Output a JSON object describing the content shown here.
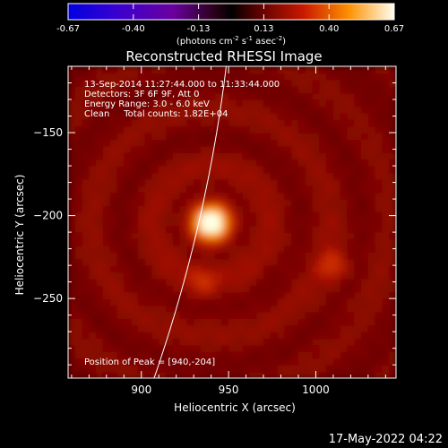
{
  "chart_data": {
    "type": "heatmap",
    "title": "Reconstructed RHESSI Image",
    "colorbar": {
      "ticks": [
        "-0.67",
        "-0.40",
        "-0.13",
        "0.13",
        "0.40",
        "0.67"
      ],
      "range": [
        -0.67,
        0.67
      ],
      "units": "(photons cm",
      "units_exp1": "-2",
      "units_mid": " s",
      "units_exp2": "-1",
      "units_end": " asec",
      "units_exp3": "-2",
      "units_close": ")"
    },
    "xlabel": "Heliocentric X (arcsec)",
    "ylabel": "Heliocentric Y (arcsec)",
    "xlim": [
      858,
      1046
    ],
    "ylim": [
      -298,
      -110
    ],
    "xticks": [
      {
        "value": 900,
        "label": "900"
      },
      {
        "value": 950,
        "label": "950"
      },
      {
        "value": 1000,
        "label": "1000"
      }
    ],
    "yticks": [
      {
        "value": -150,
        "label": "−150"
      },
      {
        "value": -200,
        "label": "−200"
      },
      {
        "value": -250,
        "label": "−250"
      }
    ],
    "annotations": [
      "13-Sep-2014 11:27:44.000 to 11:33:44.000",
      "Detectors: 3F 6F 9F, Att 0",
      "Energy Range: 3.0 - 6.0 keV",
      "Clean     Total counts: 1.82E+04"
    ],
    "peak_label": "Position of Peak = [940,-204]",
    "peak": {
      "x": 940,
      "y": -204,
      "value": 0.67
    },
    "secondary_sources": [
      {
        "x": 1010,
        "y": -230,
        "value": 0.2
      },
      {
        "x": 935,
        "y": -240,
        "value": 0.14
      }
    ],
    "limb": "solar limb arc",
    "grid": false,
    "timestamp": "17-May-2022 04:22",
    "colors": {
      "background": "#000000",
      "text": "#ffffff",
      "limb": "#ffffff"
    }
  }
}
